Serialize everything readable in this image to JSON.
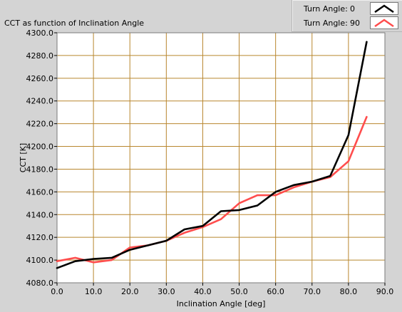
{
  "chart_title": "CCT as function of Inclination Angle",
  "legend": {
    "items": [
      {
        "name": "Turn Angle:",
        "value": "0",
        "color": "#000000"
      },
      {
        "name": "Turn Angle:",
        "value": "90",
        "color": "#ff4d4d"
      }
    ]
  },
  "colors": {
    "plot_background": "#ffffff",
    "grid": "#b8862e",
    "panel": "#d4d4d4"
  },
  "chart_data": {
    "type": "line",
    "title": "CCT as function of Inclination Angle",
    "xlabel": "Inclination Angle [deg]",
    "ylabel": "CCT [K]",
    "xlim": [
      0,
      90
    ],
    "ylim": [
      4080,
      4300
    ],
    "xticks": [
      "0.0",
      "10.0",
      "20.0",
      "30.0",
      "40.0",
      "50.0",
      "60.0",
      "70.0",
      "80.0",
      "90.0"
    ],
    "yticks": [
      "4080.0",
      "4100.0",
      "4120.0",
      "4140.0",
      "4160.0",
      "4180.0",
      "4200.0",
      "4220.0",
      "4240.0",
      "4260.0",
      "4280.0",
      "4300.0"
    ],
    "grid": true,
    "legend_position": "top-right",
    "x": [
      0,
      5,
      10,
      15,
      20,
      25,
      30,
      35,
      40,
      45,
      50,
      55,
      60,
      65,
      70,
      75,
      80,
      85
    ],
    "series": [
      {
        "name": "Turn Angle: 0",
        "color": "#000000",
        "values": [
          4093,
          4099,
          4101,
          4102,
          4109,
          4113,
          4117,
          4127,
          4130,
          4143,
          4144,
          4148,
          4160,
          4166,
          4169,
          4174,
          4210,
          4292
        ]
      },
      {
        "name": "Turn Angle: 90",
        "color": "#ff4d4d",
        "values": [
          4099,
          4102,
          4098,
          4100,
          4111,
          4113,
          4117,
          4124,
          4129,
          4136,
          4150,
          4157,
          4157,
          4164,
          4169,
          4173,
          4187,
          4226
        ]
      }
    ]
  }
}
